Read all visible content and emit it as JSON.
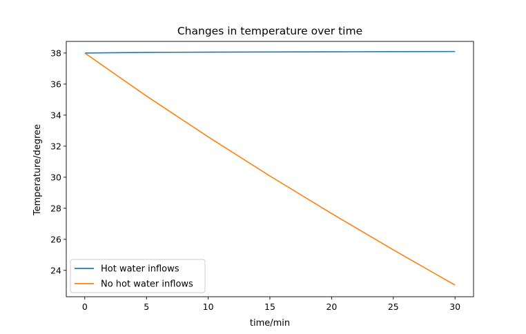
{
  "chart_data": {
    "type": "line",
    "title": "Changes in temperature over time",
    "xlabel": "time/min",
    "ylabel": "Temperature/degree",
    "xlim": [
      -1.5,
      31.5
    ],
    "ylim": [
      22.3,
      38.75
    ],
    "xticks": [
      0,
      5,
      10,
      15,
      20,
      25,
      30
    ],
    "yticks": [
      24,
      26,
      28,
      30,
      32,
      34,
      36,
      38
    ],
    "grid": false,
    "legend_position": "lower-left",
    "series": [
      {
        "name": "Hot water inflows",
        "color": "#1f77b4",
        "x": [
          0,
          5,
          10,
          15,
          20,
          25,
          30
        ],
        "y": [
          38.0,
          38.04,
          38.06,
          38.07,
          38.08,
          38.09,
          38.1
        ]
      },
      {
        "name": "No hot water inflows",
        "color": "#ff7f0e",
        "x": [
          0,
          5,
          10,
          15,
          20,
          25,
          30
        ],
        "y": [
          38.0,
          35.23,
          32.6,
          30.08,
          27.66,
          25.32,
          23.05
        ]
      }
    ]
  }
}
